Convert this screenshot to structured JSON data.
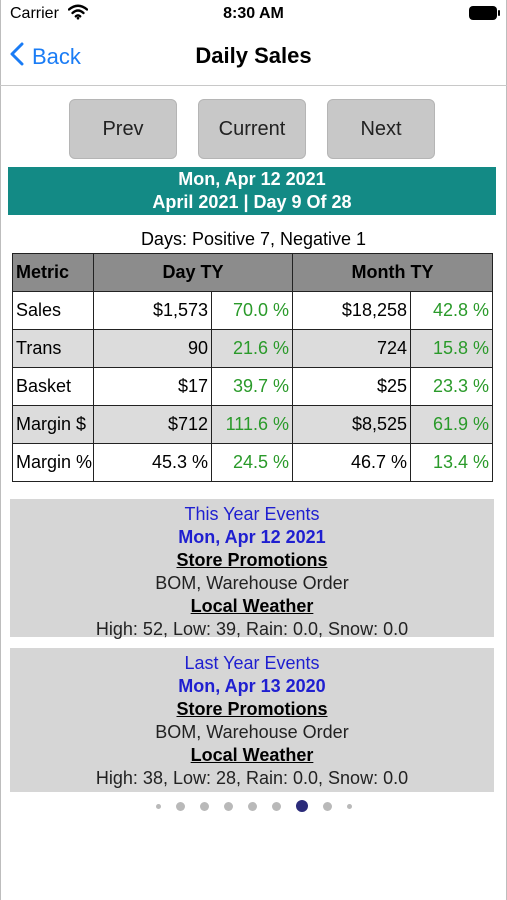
{
  "status_bar": {
    "carrier": "Carrier",
    "time": "8:30 AM"
  },
  "nav": {
    "back_label": "Back",
    "title": "Daily Sales"
  },
  "buttons": {
    "prev": "Prev",
    "current": "Current",
    "next": "Next"
  },
  "banner": {
    "date": "Mon, Apr 12 2021",
    "period": "April 2021 | Day 9 Of 28"
  },
  "days_summary": "Days: Positive 7, Negative 1",
  "table": {
    "headers": {
      "metric": "Metric",
      "day": "Day TY",
      "month": "Month TY"
    },
    "rows": [
      {
        "metric": "Sales",
        "day_val": "$1,573",
        "day_pct": "70.0 %",
        "month_val": "$18,258",
        "month_pct": "42.8 %"
      },
      {
        "metric": "Trans",
        "day_val": "90",
        "day_pct": "21.6 %",
        "month_val": "724",
        "month_pct": "15.8 %"
      },
      {
        "metric": "Basket",
        "day_val": "$17",
        "day_pct": "39.7 %",
        "month_val": "$25",
        "month_pct": "23.3 %"
      },
      {
        "metric": "Margin $",
        "day_val": "$712",
        "day_pct": "111.6 %",
        "month_val": "$8,525",
        "month_pct": "61.9 %"
      },
      {
        "metric": "Margin %",
        "day_val": "45.3 %",
        "day_pct": "24.5 %",
        "month_val": "46.7 %",
        "month_pct": "13.4 %"
      }
    ]
  },
  "events": {
    "this_year": {
      "title": "This Year Events",
      "date": "Mon, Apr 12 2021",
      "promo_heading": "Store Promotions",
      "promo_text": "BOM, Warehouse Order",
      "weather_heading": "Local Weather",
      "weather_text": "High: 52, Low: 39, Rain: 0.0, Snow: 0.0"
    },
    "last_year": {
      "title": "Last Year Events",
      "date": "Mon, Apr 13 2020",
      "promo_heading": "Store Promotions",
      "promo_text": "BOM, Warehouse Order",
      "weather_heading": "Local Weather",
      "weather_text": "High: 38, Low: 28, Rain: 0.0, Snow: 0.0"
    }
  },
  "pagination": {
    "total_pages": 9,
    "current_page": 7
  },
  "colors": {
    "accent_blue": "#1a7cf5",
    "banner_teal": "#138a85",
    "positive_green": "#2a9a2a",
    "event_blue": "#1f1fd0",
    "active_dot": "#2b2b7a"
  }
}
